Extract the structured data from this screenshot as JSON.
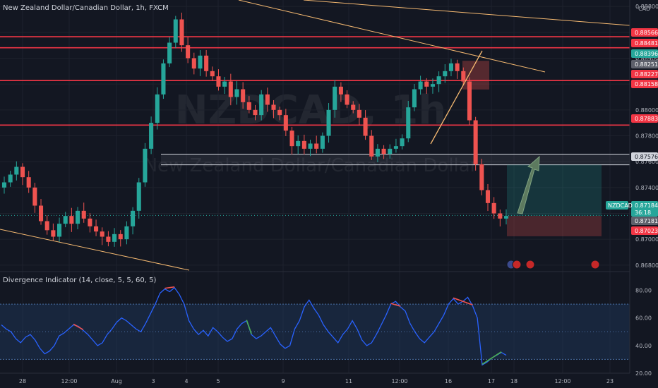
{
  "header": {
    "title": "New Zealand Dollar/Canadian Dollar, 1h, FXCM",
    "currency": "CAD",
    "watermark_symbol": "NZDCAD, 1h",
    "watermark_name": "New Zealand Dollar/Canadian Dollar"
  },
  "indicator": {
    "label": "Divergence Indicator (14, close, 5, 5, 60, 5)"
  },
  "price_axis": {
    "ticks": [
      "0.88800",
      "0.88600",
      "0.88400",
      "0.88200",
      "0.88000",
      "0.87800",
      "0.87600",
      "0.87400",
      "0.87200",
      "0.87000",
      "0.86800"
    ],
    "tags": [
      {
        "text": "0.88566",
        "kind": "red"
      },
      {
        "text": "0.88481",
        "kind": "red"
      },
      {
        "text": "0.88396",
        "kind": "teal"
      },
      {
        "text": "0.88251",
        "kind": "gray"
      },
      {
        "text": "0.88227",
        "kind": "red"
      },
      {
        "text": "0.88158",
        "kind": "red"
      },
      {
        "text": "0.87883",
        "kind": "red"
      },
      {
        "text": "0.87576",
        "kind": "white"
      },
      {
        "text": "0.87184",
        "kind": "teal"
      },
      {
        "text": "36:18",
        "kind": "teal"
      },
      {
        "text": "0.87181",
        "kind": "gray"
      },
      {
        "text": "0.87023",
        "kind": "red"
      }
    ],
    "symbol_tag": "NZDCAD"
  },
  "rsi_axis": {
    "ticks": [
      "80.00",
      "60.00",
      "40.00",
      "20.00"
    ]
  },
  "time_axis": {
    "ticks": [
      "28",
      "12:00",
      "Aug",
      "3",
      "4",
      "5",
      "9",
      "11",
      "12:00",
      "16",
      "17",
      "18",
      "12:00",
      "23"
    ]
  },
  "colors": {
    "background": "#131722",
    "bull": "#26a69a",
    "bear": "#ef5350",
    "level_line": "#f23645",
    "trend_line": "#f5b971",
    "rsi_line": "#2962ff",
    "band": "#1e3a5f"
  },
  "chart_data": [
    {
      "type": "candlestick",
      "symbol": "NZDCAD",
      "timeframe": "1h",
      "ylim": [
        0.8675,
        0.8885
      ],
      "horizontal_levels": [
        0.88566,
        0.88481,
        0.88227,
        0.87883
      ],
      "zone": [
        0.87576,
        0.87658
      ],
      "current_price": 0.87184,
      "trade_box": {
        "entry": 0.87181,
        "target": 0.87576,
        "stop": 0.87023
      },
      "closes": [
        0.8744,
        0.875,
        0.8756,
        0.8748,
        0.874,
        0.8726,
        0.8714,
        0.8707,
        0.8702,
        0.8712,
        0.8718,
        0.8712,
        0.8722,
        0.8716,
        0.871,
        0.8706,
        0.8702,
        0.8698,
        0.8704,
        0.87,
        0.871,
        0.8722,
        0.8744,
        0.877,
        0.879,
        0.8812,
        0.8836,
        0.8852,
        0.887,
        0.885,
        0.884,
        0.8832,
        0.8842,
        0.883,
        0.8826,
        0.8818,
        0.8822,
        0.881,
        0.8816,
        0.8806,
        0.88,
        0.8796,
        0.8812,
        0.8804,
        0.88,
        0.8796,
        0.8784,
        0.8772,
        0.8776,
        0.877,
        0.8774,
        0.877,
        0.878,
        0.88,
        0.8818,
        0.8812,
        0.8804,
        0.88,
        0.8794,
        0.878,
        0.8764,
        0.877,
        0.8766,
        0.877,
        0.8772,
        0.8778,
        0.8802,
        0.8816,
        0.8822,
        0.8818,
        0.882,
        0.8826,
        0.883,
        0.8836,
        0.883,
        0.8822,
        0.8792,
        0.8758,
        0.8738,
        0.8728,
        0.872,
        0.8716,
        0.8718
      ]
    },
    {
      "type": "line",
      "title": "Divergence Indicator (14, close, 5, 5, 60, 5)",
      "ylim": [
        20,
        90
      ],
      "band": [
        30,
        70
      ],
      "midline": 50,
      "values": [
        55,
        52,
        50,
        45,
        42,
        46,
        48,
        44,
        38,
        34,
        36,
        40,
        47,
        49,
        52,
        55,
        54,
        51,
        48,
        44,
        40,
        42,
        48,
        52,
        57,
        60,
        58,
        55,
        52,
        50,
        56,
        63,
        70,
        78,
        81,
        79,
        82,
        77,
        70,
        58,
        52,
        48,
        51,
        47,
        53,
        50,
        46,
        43,
        45,
        52,
        56,
        58,
        48,
        45,
        47,
        50,
        53,
        47,
        41,
        38,
        40,
        52,
        58,
        68,
        73,
        67,
        62,
        55,
        50,
        46,
        42,
        48,
        52,
        58,
        52,
        44,
        40,
        42,
        48,
        55,
        62,
        70,
        72,
        68,
        65,
        56,
        50,
        45,
        42,
        46,
        50,
        56,
        62,
        70,
        74,
        70,
        72,
        75,
        69,
        60,
        26,
        28,
        31,
        33,
        35,
        33
      ]
    }
  ]
}
